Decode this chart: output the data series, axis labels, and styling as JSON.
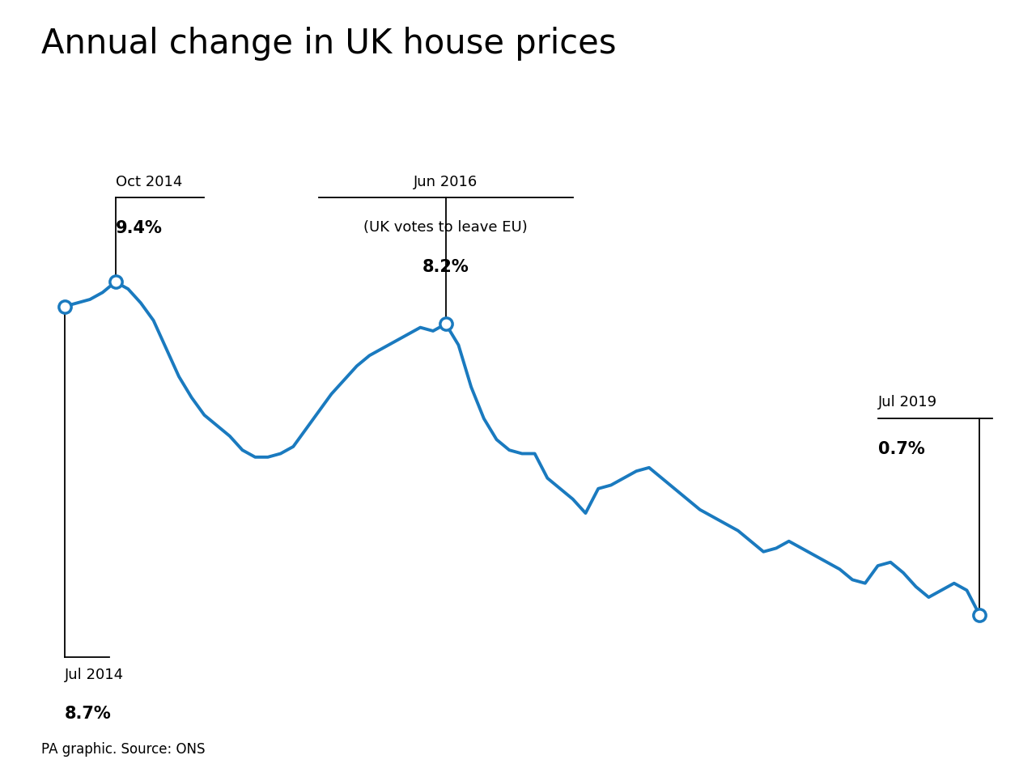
{
  "title": "Annual change in UK house prices",
  "line_color": "#1a7abf",
  "background_color": "#ffffff",
  "source_text": "PA graphic. Source: ONS",
  "data_y": [
    8.7,
    8.8,
    8.9,
    9.1,
    9.4,
    9.2,
    8.8,
    8.3,
    7.5,
    6.7,
    6.1,
    5.6,
    5.3,
    5.0,
    4.6,
    4.4,
    4.4,
    4.5,
    4.7,
    5.2,
    5.7,
    6.2,
    6.6,
    7.0,
    7.3,
    7.5,
    7.7,
    7.9,
    8.1,
    8.0,
    8.2,
    7.6,
    6.4,
    5.5,
    4.9,
    4.6,
    4.5,
    4.5,
    3.8,
    3.5,
    3.2,
    2.8,
    3.5,
    3.6,
    3.8,
    4.0,
    4.1,
    3.8,
    3.5,
    3.2,
    2.9,
    2.7,
    2.5,
    2.3,
    2.0,
    1.7,
    1.8,
    2.0,
    1.8,
    1.6,
    1.4,
    1.2,
    0.9,
    0.8,
    1.3,
    1.4,
    1.1,
    0.7,
    0.4,
    0.6,
    0.8,
    0.6,
    -0.1
  ],
  "annotated_indices": [
    0,
    4,
    30,
    72
  ],
  "ylim": [
    -2.5,
    13.5
  ],
  "xlim": [
    -1,
    74
  ]
}
